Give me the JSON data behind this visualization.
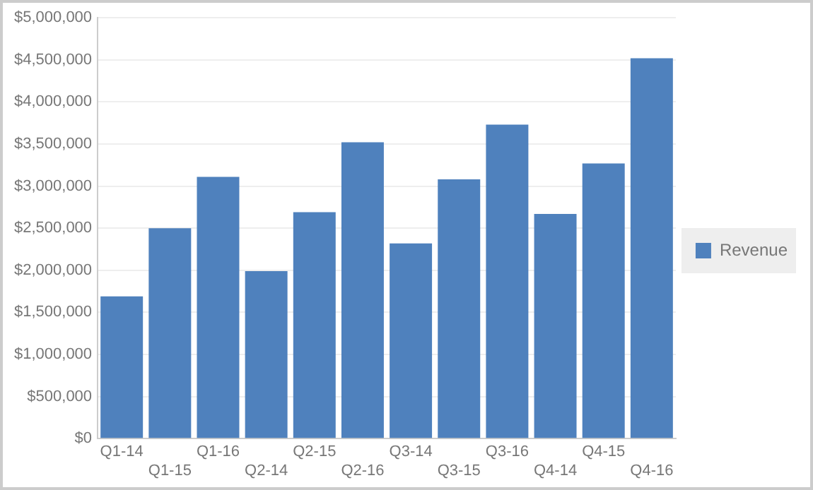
{
  "chart_data": {
    "type": "bar",
    "categories": [
      "Q1-14",
      "Q1-15",
      "Q1-16",
      "Q2-14",
      "Q2-15",
      "Q2-16",
      "Q3-14",
      "Q3-15",
      "Q3-16",
      "Q4-14",
      "Q4-15",
      "Q4-16"
    ],
    "series": [
      {
        "name": "Revenue",
        "color": "#4f81bd",
        "values": [
          1690000,
          2500000,
          3110000,
          1990000,
          2690000,
          3520000,
          2320000,
          3080000,
          3730000,
          2670000,
          3270000,
          4520000
        ]
      }
    ],
    "ylim": [
      0,
      5000000
    ],
    "yticks": [
      {
        "value": 0,
        "label": "$0"
      },
      {
        "value": 500000,
        "label": "$500,000"
      },
      {
        "value": 1000000,
        "label": "$1,000,000"
      },
      {
        "value": 1500000,
        "label": "$1,500,000"
      },
      {
        "value": 2000000,
        "label": "$2,000,000"
      },
      {
        "value": 2500000,
        "label": "$2,500,000"
      },
      {
        "value": 3000000,
        "label": "$3,000,000"
      },
      {
        "value": 3500000,
        "label": "$3,500,000"
      },
      {
        "value": 4000000,
        "label": "$4,000,000"
      },
      {
        "value": 4500000,
        "label": "$4,500,000"
      },
      {
        "value": 5000000,
        "label": "$5,000,000"
      }
    ],
    "grid": "y",
    "legend": "right"
  }
}
